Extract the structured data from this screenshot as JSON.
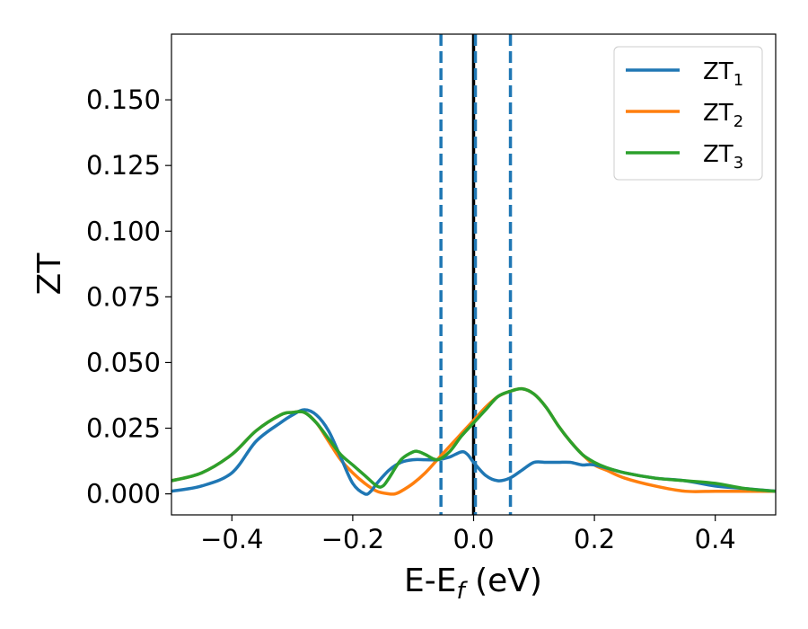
{
  "chart_data": {
    "type": "line",
    "xlabel_main": "E-E",
    "xlabel_sub": "f",
    "xlabel_rest": " (eV)",
    "ylabel": "ZT",
    "xlim": [
      -0.5,
      0.5
    ],
    "ylim": [
      -0.008,
      0.175
    ],
    "x_ticks": [
      -0.4,
      -0.2,
      0.0,
      0.2,
      0.4
    ],
    "x_tick_labels": [
      "−0.4",
      "−0.2",
      "0.0",
      "0.2",
      "0.4"
    ],
    "y_ticks": [
      0.0,
      0.025,
      0.05,
      0.075,
      0.1,
      0.125,
      0.15
    ],
    "y_tick_labels": [
      "0.000",
      "0.025",
      "0.050",
      "0.075",
      "0.100",
      "0.125",
      "0.150"
    ],
    "grid": false,
    "legend_position": "top-right",
    "vlines": [
      {
        "x": -0.054,
        "style": "dashed",
        "color": "#1f77b4"
      },
      {
        "x": 0.0,
        "style": "solid",
        "color": "#000000"
      },
      {
        "x": 0.003,
        "style": "dashed",
        "color": "#1f77b4"
      },
      {
        "x": 0.061,
        "style": "dashed",
        "color": "#1f77b4"
      }
    ],
    "series": [
      {
        "name": "ZT",
        "name_sub": "1",
        "color": "#1f77b4",
        "x": [
          -0.5,
          -0.45,
          -0.4,
          -0.36,
          -0.32,
          -0.3,
          -0.28,
          -0.26,
          -0.24,
          -0.22,
          -0.2,
          -0.18,
          -0.17,
          -0.16,
          -0.14,
          -0.12,
          -0.1,
          -0.08,
          -0.06,
          -0.04,
          -0.02,
          -0.01,
          0.0,
          0.02,
          0.04,
          0.06,
          0.08,
          0.1,
          0.12,
          0.14,
          0.16,
          0.18,
          0.2,
          0.25,
          0.3,
          0.35,
          0.4,
          0.45,
          0.5
        ],
        "y": [
          0.001,
          0.003,
          0.008,
          0.02,
          0.027,
          0.03,
          0.032,
          0.03,
          0.024,
          0.014,
          0.004,
          0.0,
          0.001,
          0.004,
          0.009,
          0.012,
          0.013,
          0.013,
          0.013,
          0.014,
          0.016,
          0.015,
          0.012,
          0.007,
          0.005,
          0.006,
          0.009,
          0.012,
          0.012,
          0.012,
          0.012,
          0.011,
          0.011,
          0.008,
          0.006,
          0.005,
          0.003,
          0.002,
          0.001
        ]
      },
      {
        "name": "ZT",
        "name_sub": "2",
        "color": "#ff7f0e",
        "x": [
          -0.5,
          -0.45,
          -0.4,
          -0.36,
          -0.32,
          -0.3,
          -0.28,
          -0.26,
          -0.24,
          -0.22,
          -0.2,
          -0.18,
          -0.16,
          -0.14,
          -0.13,
          -0.12,
          -0.1,
          -0.08,
          -0.06,
          -0.04,
          -0.02,
          0.0,
          0.02,
          0.04,
          0.06,
          0.08,
          0.1,
          0.12,
          0.14,
          0.16,
          0.18,
          0.2,
          0.22,
          0.25,
          0.3,
          0.35,
          0.4,
          0.45,
          0.5
        ],
        "y": [
          0.005,
          0.008,
          0.015,
          0.024,
          0.03,
          0.031,
          0.031,
          0.027,
          0.02,
          0.013,
          0.008,
          0.004,
          0.001,
          0.0,
          0.0,
          0.001,
          0.004,
          0.008,
          0.013,
          0.018,
          0.023,
          0.028,
          0.033,
          0.037,
          0.039,
          0.04,
          0.038,
          0.033,
          0.026,
          0.02,
          0.015,
          0.011,
          0.009,
          0.006,
          0.003,
          0.001,
          0.001,
          0.001,
          0.001
        ]
      },
      {
        "name": "ZT",
        "name_sub": "3",
        "color": "#2ca02c",
        "x": [
          -0.5,
          -0.45,
          -0.4,
          -0.36,
          -0.32,
          -0.3,
          -0.28,
          -0.26,
          -0.24,
          -0.22,
          -0.2,
          -0.18,
          -0.16,
          -0.15,
          -0.14,
          -0.12,
          -0.1,
          -0.09,
          -0.08,
          -0.06,
          -0.04,
          -0.02,
          0.0,
          0.02,
          0.04,
          0.06,
          0.08,
          0.1,
          0.12,
          0.14,
          0.16,
          0.18,
          0.2,
          0.22,
          0.25,
          0.3,
          0.35,
          0.4,
          0.45,
          0.5
        ],
        "y": [
          0.005,
          0.008,
          0.015,
          0.024,
          0.03,
          0.031,
          0.031,
          0.027,
          0.021,
          0.015,
          0.011,
          0.007,
          0.003,
          0.003,
          0.006,
          0.013,
          0.016,
          0.016,
          0.015,
          0.013,
          0.016,
          0.022,
          0.027,
          0.032,
          0.037,
          0.039,
          0.04,
          0.038,
          0.033,
          0.026,
          0.02,
          0.015,
          0.012,
          0.01,
          0.008,
          0.006,
          0.005,
          0.004,
          0.002,
          0.001
        ]
      }
    ]
  }
}
